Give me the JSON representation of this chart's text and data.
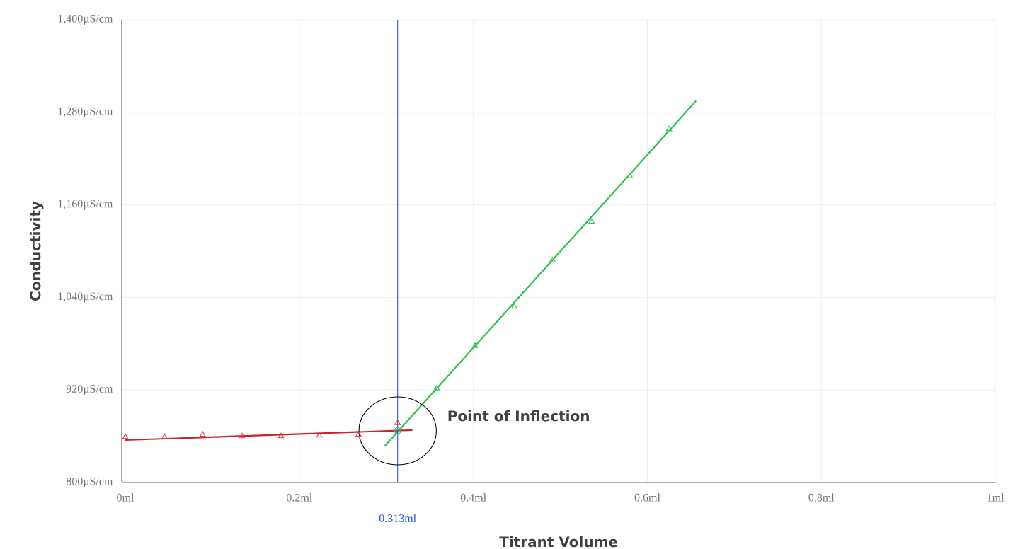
{
  "chart_data": {
    "type": "scatter",
    "xlabel": "Titrant Volume",
    "ylabel": "Conductivity",
    "xlim": [
      -0.004,
      1
    ],
    "ylim": [
      800,
      1400
    ],
    "xticks": [
      {
        "value": 0,
        "label": "0ml"
      },
      {
        "value": 0.2,
        "label": "0.2ml"
      },
      {
        "value": 0.4,
        "label": "0.4ml"
      },
      {
        "value": 0.6,
        "label": "0.6ml"
      },
      {
        "value": 0.8,
        "label": "0.8ml"
      },
      {
        "value": 1,
        "label": "1ml"
      }
    ],
    "yticks": [
      {
        "value": 800,
        "label": "800µS/cm"
      },
      {
        "value": 920,
        "label": "920µS/cm"
      },
      {
        "value": 1040,
        "label": "1,040µS/cm"
      },
      {
        "value": 1160,
        "label": "1,160µS/cm"
      },
      {
        "value": 1280,
        "label": "1,280µS/cm"
      },
      {
        "value": 1400,
        "label": "1,400µS/cm"
      }
    ],
    "grid": true,
    "line_style": "solid",
    "series": [
      {
        "type": "line",
        "marker": "none",
        "color": "#c0282d",
        "x": [
          0,
          0.33
        ],
        "values": [
          855,
          868
        ]
      },
      {
        "type": "line",
        "marker": "none",
        "color": "#2dbd4e",
        "x": [
          0.298,
          0.656
        ],
        "values": [
          847,
          1295
        ]
      },
      {
        "marker": "triangle",
        "color": "#d9434a",
        "x": [
          0,
          0.045,
          0.089,
          0.134,
          0.179,
          0.223,
          0.268,
          0.313
        ],
        "values": [
          859,
          859,
          862,
          860,
          860,
          861,
          862,
          877
        ]
      },
      {
        "marker": "triangle",
        "color": "#3cc45c",
        "x": [
          0.358,
          0.402,
          0.447,
          0.491,
          0.536,
          0.58,
          0.625
        ],
        "values": [
          922,
          977,
          1028,
          1088,
          1138,
          1197,
          1258
        ]
      },
      {
        "marker": "circle",
        "color": "#2dbd4e",
        "x": [
          0.313
        ],
        "values": [
          867
        ]
      }
    ],
    "ref_lines": [
      {
        "axis": "x",
        "value": 0.313,
        "label": "0.313ml",
        "color": "#2250dd"
      }
    ],
    "annotations": [
      "Point of Inflection"
    ]
  }
}
